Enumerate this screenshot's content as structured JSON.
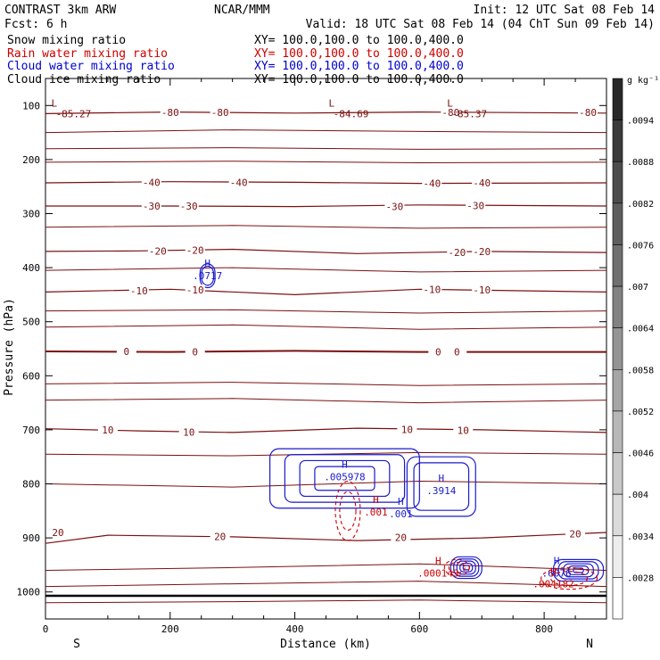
{
  "header": {
    "model": "CONTRAST  3km ARW",
    "center": "NCAR/MMM",
    "init": "Init: 12 UTC Sat 08 Feb 14",
    "fcst": "Fcst:    6 h",
    "valid": "Valid: 18 UTC Sat 08 Feb 14 (04 ChT Sun 09 Feb 14)"
  },
  "fields": [
    {
      "name": "Snow mixing ratio",
      "xy": "XY= 100.0,100.0 to 100.0,400.0",
      "color": "#000000"
    },
    {
      "name": "Rain water mixing ratio",
      "xy": "XY= 100.0,100.0 to 100.0,400.0",
      "color": "#cc0000"
    },
    {
      "name": "Cloud water mixing ratio",
      "xy": "XY= 100.0,100.0 to 100.0,400.0",
      "color": "#0000cc"
    },
    {
      "name": "Cloud ice mixing ratio",
      "xy": "XY= 100.0,100.0 to 100.0,400.0",
      "color": "#000000"
    }
  ],
  "colors": {
    "temperature": "#7a1010",
    "rain": "#cc0000",
    "cloud_water": "#1a1acc",
    "ground": "#000000"
  },
  "chart_data": {
    "type": "contour",
    "xlabel": "Distance (km)",
    "ylabel": "Pressure (hPa)",
    "xlim": [
      0,
      900
    ],
    "ylim": [
      1050,
      50
    ],
    "x_ticks": [
      "0",
      "200",
      "400",
      "600",
      "800"
    ],
    "y_ticks": [
      "100",
      "200",
      "300",
      "400",
      "500",
      "600",
      "700",
      "800",
      "900",
      "1000"
    ],
    "x_end_labels": {
      "left": "S",
      "right": "N"
    },
    "colorbar": {
      "unit": "g kg⁻¹",
      "ticks": [
        ".0094",
        ".0088",
        ".0082",
        ".0076",
        ".007",
        ".0064",
        ".0058",
        ".0052",
        ".0046",
        ".004",
        ".0034",
        ".0028"
      ]
    },
    "temperature_isotherms": [
      {
        "label": "-80",
        "points": [
          [
            0,
            115
          ],
          [
            200,
            112
          ],
          [
            400,
            114
          ],
          [
            600,
            112
          ],
          [
            900,
            114
          ]
        ],
        "label_at": [
          [
            200,
            113
          ],
          [
            280,
            113
          ],
          [
            650,
            113
          ],
          [
            870,
            113
          ]
        ]
      },
      {
        "label": "-40",
        "points": [
          [
            0,
            243
          ],
          [
            200,
            241
          ],
          [
            400,
            242
          ],
          [
            600,
            244
          ],
          [
            900,
            243
          ]
        ],
        "label_at": [
          [
            170,
            242
          ],
          [
            310,
            242
          ],
          [
            620,
            244
          ],
          [
            700,
            243
          ]
        ]
      },
      {
        "label": "-30",
        "points": [
          [
            0,
            286
          ],
          [
            200,
            286
          ],
          [
            400,
            287
          ],
          [
            600,
            284
          ],
          [
            900,
            286
          ]
        ],
        "label_at": [
          [
            170,
            286
          ],
          [
            230,
            286
          ],
          [
            560,
            287
          ],
          [
            690,
            285
          ]
        ]
      },
      {
        "label": "-20",
        "points": [
          [
            0,
            370
          ],
          [
            150,
            369
          ],
          [
            300,
            366
          ],
          [
            500,
            374
          ],
          [
            700,
            370
          ],
          [
            900,
            372
          ]
        ],
        "label_at": [
          [
            180,
            369
          ],
          [
            240,
            368
          ],
          [
            660,
            372
          ],
          [
            700,
            370
          ]
        ]
      },
      {
        "label": "-10",
        "points": [
          [
            0,
            445
          ],
          [
            200,
            440
          ],
          [
            400,
            450
          ],
          [
            600,
            440
          ],
          [
            900,
            445
          ]
        ],
        "label_at": [
          [
            150,
            443
          ],
          [
            240,
            441
          ],
          [
            620,
            440
          ],
          [
            700,
            441
          ]
        ]
      },
      {
        "label": "0",
        "points": [
          [
            0,
            555
          ],
          [
            200,
            556
          ],
          [
            400,
            554
          ],
          [
            600,
            556
          ],
          [
            900,
            556
          ]
        ],
        "label_at": [
          [
            130,
            555
          ],
          [
            240,
            556
          ],
          [
            630,
            556
          ],
          [
            660,
            556
          ]
        ]
      },
      {
        "label": "10",
        "points": [
          [
            0,
            698
          ],
          [
            150,
            702
          ],
          [
            300,
            705
          ],
          [
            500,
            697
          ],
          [
            700,
            700
          ],
          [
            900,
            705
          ]
        ],
        "label_at": [
          [
            100,
            700
          ],
          [
            230,
            704
          ],
          [
            580,
            699
          ],
          [
            670,
            701
          ]
        ]
      },
      {
        "label": "20",
        "points": [
          [
            0,
            910
          ],
          [
            100,
            895
          ],
          [
            300,
            898
          ],
          [
            500,
            905
          ],
          [
            700,
            900
          ],
          [
            900,
            890
          ]
        ],
        "label_at": [
          [
            20,
            890
          ],
          [
            280,
            897
          ],
          [
            570,
            899
          ],
          [
            850,
            892
          ]
        ]
      }
    ],
    "temperature_extrema": [
      {
        "type": "L",
        "value": "-85.27",
        "x": 45,
        "p": 112
      },
      {
        "type": "L",
        "value": "-84.69",
        "x": 490,
        "p": 112
      },
      {
        "type": "L",
        "value": "-85.37",
        "x": 680,
        "p": 112
      }
    ],
    "cloud_water_maxima": [
      {
        "value": ".0717",
        "x": 260,
        "p": 415
      },
      {
        "value": ".005978",
        "x": 480,
        "p": 787
      },
      {
        "value": ".3914",
        "x": 635,
        "p": 812
      },
      {
        "value": ".001",
        "x": 570,
        "p": 855
      },
      {
        "value": ".6076",
        "x": 820,
        "p": 965
      }
    ],
    "rain_maxima": [
      {
        "value": ".001",
        "x": 530,
        "p": 852
      },
      {
        "value": ".000143",
        "x": 630,
        "p": 965
      },
      {
        "value": ".004182",
        "x": 815,
        "p": 985
      }
    ]
  }
}
